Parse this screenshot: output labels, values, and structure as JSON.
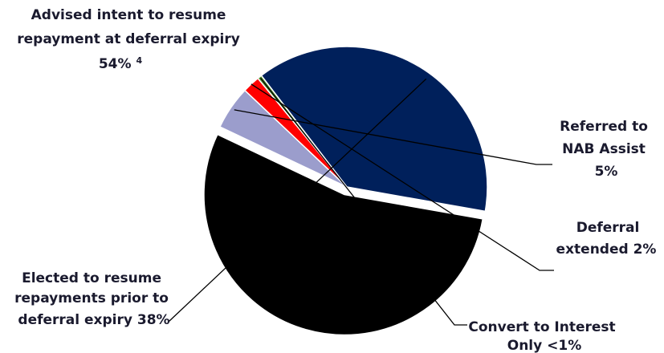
{
  "chart_data": {
    "type": "pie",
    "slices": [
      {
        "key": "advised",
        "label": "Advised intent to resume repayment at deferral expiry",
        "value": 54,
        "display": "54%",
        "footnote": "4",
        "color": "#000000"
      },
      {
        "key": "nab_assist",
        "label": "Referred to NAB Assist",
        "value": 5,
        "display": "5%",
        "color": "#9b9dcc"
      },
      {
        "key": "extended",
        "label": "Deferral extended",
        "value": 2,
        "display": "2%",
        "color": "#ff0000"
      },
      {
        "key": "interest_only",
        "label": "Convert to Interest Only",
        "value": 0.5,
        "display": "<1%",
        "color": "#4e8a2e"
      },
      {
        "key": "elected",
        "label": "Elected to resume repayments prior to deferral expiry",
        "value": 38,
        "display": "38%",
        "color": "#00205b"
      }
    ]
  },
  "labels": {
    "advised": [
      "Advised intent to resume",
      "repayment at deferral expiry",
      "54%"
    ],
    "advised_footnote": "4",
    "nab_assist": [
      "Referred to",
      "NAB Assist",
      "5%"
    ],
    "extended": [
      "Deferral",
      "extended 2%"
    ],
    "interest_only": [
      "Convert to Interest",
      "Only <1%"
    ],
    "elected": [
      "Elected to resume",
      "repayments prior to",
      "deferral expiry 38%"
    ]
  }
}
